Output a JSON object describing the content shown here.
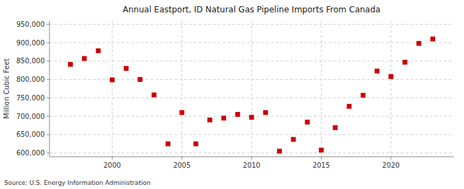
{
  "chart_data": {
    "type": "scatter",
    "title": "Annual Eastport, ID Natural Gas Pipeline Imports From Canada",
    "ylabel": "Million Cubic Feet",
    "source": "Source: U.S. Energy Information Administration",
    "x": [
      1997,
      1998,
      1999,
      2000,
      2001,
      2002,
      2003,
      2004,
      2005,
      2006,
      2007,
      2008,
      2009,
      2010,
      2011,
      2012,
      2013,
      2014,
      2015,
      2016,
      2017,
      2018,
      2019,
      2020,
      2021,
      2022,
      2023
    ],
    "values": [
      841000,
      857000,
      878000,
      799000,
      830000,
      800000,
      758000,
      625000,
      710000,
      625000,
      690000,
      695000,
      705000,
      697000,
      710000,
      605000,
      637000,
      684000,
      608000,
      669000,
      727000,
      757000,
      823000,
      808000,
      847000,
      898000,
      910000
    ],
    "color": "#cc0000",
    "marker": "square",
    "xlim": [
      1995.5,
      2024.5
    ],
    "ylim": [
      590000,
      960000
    ],
    "xticks": [
      2000,
      2005,
      2010,
      2015,
      2020
    ],
    "yticks": [
      {
        "value": 600000,
        "label": "600,000"
      },
      {
        "value": 650000,
        "label": "650,000"
      },
      {
        "value": 700000,
        "label": "700,000"
      },
      {
        "value": 750000,
        "label": "750,000"
      },
      {
        "value": 800000,
        "label": "800,000"
      },
      {
        "value": 850000,
        "label": "850,000"
      },
      {
        "value": 900000,
        "label": "900,000"
      },
      {
        "value": 950000,
        "label": "950,000"
      }
    ],
    "grid": true
  }
}
